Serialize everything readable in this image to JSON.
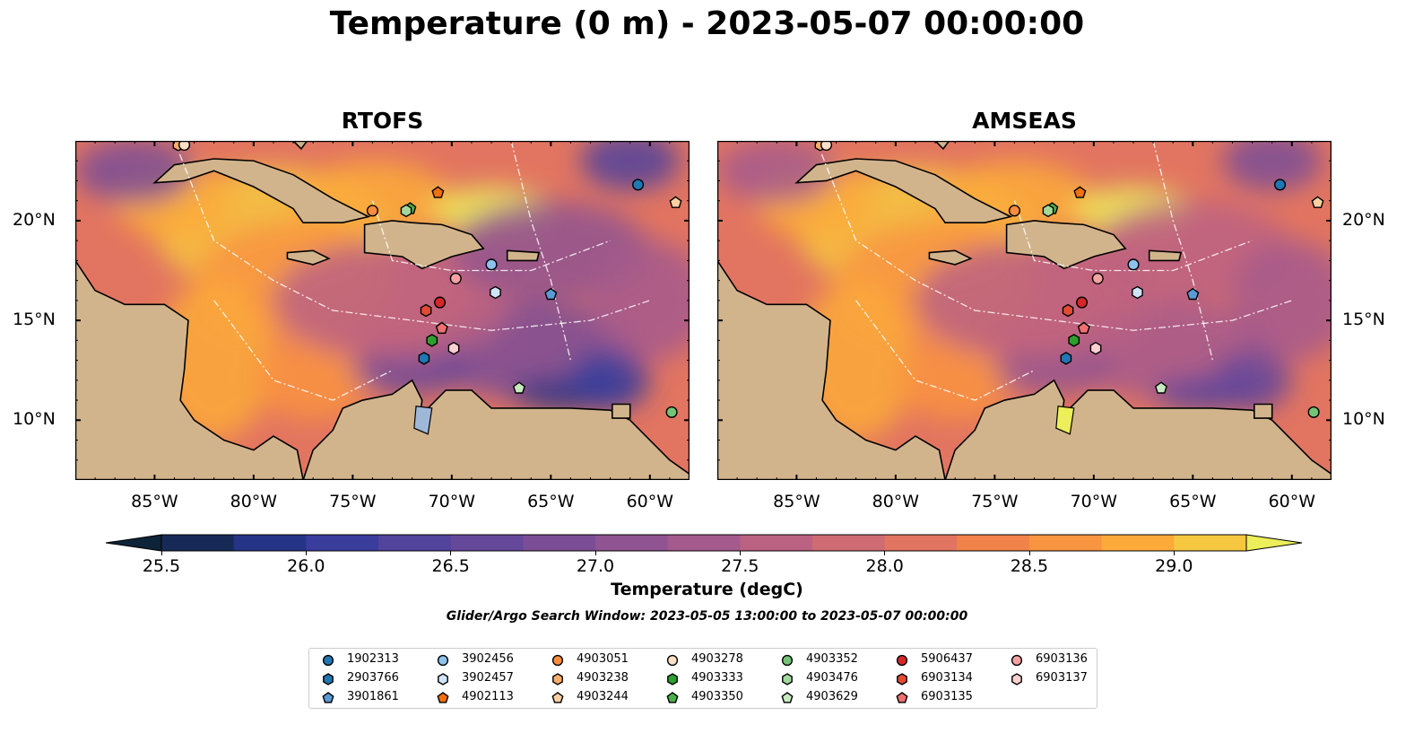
{
  "title": "Temperature (0 m) - 2023-05-07 00:00:00",
  "panels": [
    {
      "title": "RTOFS",
      "variant": "rtofs"
    },
    {
      "title": "AMSEAS",
      "variant": "amseas"
    }
  ],
  "map": {
    "lon_range": [
      -89,
      -58
    ],
    "lat_range": [
      7,
      24
    ],
    "x_ticks": [
      "85°W",
      "80°W",
      "75°W",
      "70°W",
      "65°W",
      "60°W"
    ],
    "x_tick_lons": [
      -85,
      -80,
      -75,
      -70,
      -65,
      -60
    ],
    "y_ticks": [
      "20°N",
      "15°N",
      "10°N"
    ],
    "y_tick_lats": [
      20,
      15,
      10
    ],
    "land_color": "#d2b48c",
    "water_color": "#9fb8d8"
  },
  "colorbar": {
    "label": "Temperature (degC)",
    "min": 25.5,
    "max": 29.25,
    "step": 0.25,
    "ticks": [
      "25.5",
      "26.0",
      "26.5",
      "27.0",
      "27.5",
      "28.0",
      "28.5",
      "29.0"
    ],
    "tick_values": [
      25.5,
      26.0,
      26.5,
      27.0,
      27.5,
      28.0,
      28.5,
      29.0
    ],
    "colors": [
      "#0d2338",
      "#172a57",
      "#253487",
      "#3a3d9c",
      "#52439c",
      "#66489a",
      "#7a4d96",
      "#8f5491",
      "#a55a8d",
      "#bb6283",
      "#cf6c73",
      "#e27561",
      "#f1824a",
      "#f99440",
      "#fcaa3a",
      "#f6c841",
      "#ecee5a"
    ]
  },
  "search_window": "Glider/Argo Search Window: 2023-05-05 13:00:00 to 2023-05-07 00:00:00",
  "floats": [
    {
      "id": "1902313",
      "marker": "circle",
      "color": "#1f77b4",
      "lon": -60.6,
      "lat": 21.8
    },
    {
      "id": "2903766",
      "marker": "hexagon",
      "color": "#1f77b4",
      "lon": -71.4,
      "lat": 13.1
    },
    {
      "id": "3901861",
      "marker": "pentagon",
      "color": "#5b9bd5",
      "lon": -65.0,
      "lat": 16.3
    },
    {
      "id": "3902456",
      "marker": "circle",
      "color": "#8fc2ec",
      "lon": -68.0,
      "lat": 17.8
    },
    {
      "id": "3902457",
      "marker": "hexagon",
      "color": "#cfe4f7",
      "lon": -67.8,
      "lat": 16.4
    },
    {
      "id": "4902113",
      "marker": "pentagon",
      "color": "#f2700e",
      "lon": -70.7,
      "lat": 21.4
    },
    {
      "id": "4903051",
      "marker": "circle",
      "color": "#fd8d3c",
      "lon": -74.0,
      "lat": 20.5
    },
    {
      "id": "4903238",
      "marker": "hexagon",
      "color": "#fdae6b",
      "lon": -83.8,
      "lat": 23.8
    },
    {
      "id": "4903244",
      "marker": "pentagon",
      "color": "#fdd0a2",
      "lon": -58.7,
      "lat": 20.9
    },
    {
      "id": "4903278",
      "marker": "circle",
      "color": "#fee0c8",
      "lon": -83.5,
      "lat": 23.8
    },
    {
      "id": "4903333",
      "marker": "hexagon",
      "color": "#2ca02c",
      "lon": -71.0,
      "lat": 14.0
    },
    {
      "id": "4903350",
      "marker": "pentagon",
      "color": "#4daf4a",
      "lon": -72.1,
      "lat": 20.6
    },
    {
      "id": "4903352",
      "marker": "circle",
      "color": "#74c476",
      "lon": -58.9,
      "lat": 10.4
    },
    {
      "id": "4903476",
      "marker": "hexagon",
      "color": "#a1d99b",
      "lon": -72.3,
      "lat": 20.5
    },
    {
      "id": "4903629",
      "marker": "pentagon",
      "color": "#c7e9c0",
      "lon": -66.6,
      "lat": 11.6
    },
    {
      "id": "5906437",
      "marker": "circle",
      "color": "#d62728",
      "lon": -70.6,
      "lat": 15.9
    },
    {
      "id": "6903134",
      "marker": "hexagon",
      "color": "#e34a33",
      "lon": -71.3,
      "lat": 15.5
    },
    {
      "id": "6903135",
      "marker": "pentagon",
      "color": "#f07070",
      "lon": -70.5,
      "lat": 14.6
    },
    {
      "id": "6903136",
      "marker": "circle",
      "color": "#f4a3a3",
      "lon": -69.8,
      "lat": 17.1
    },
    {
      "id": "6903137",
      "marker": "hexagon",
      "color": "#fbd0d0",
      "lon": -69.9,
      "lat": 13.6
    }
  ]
}
